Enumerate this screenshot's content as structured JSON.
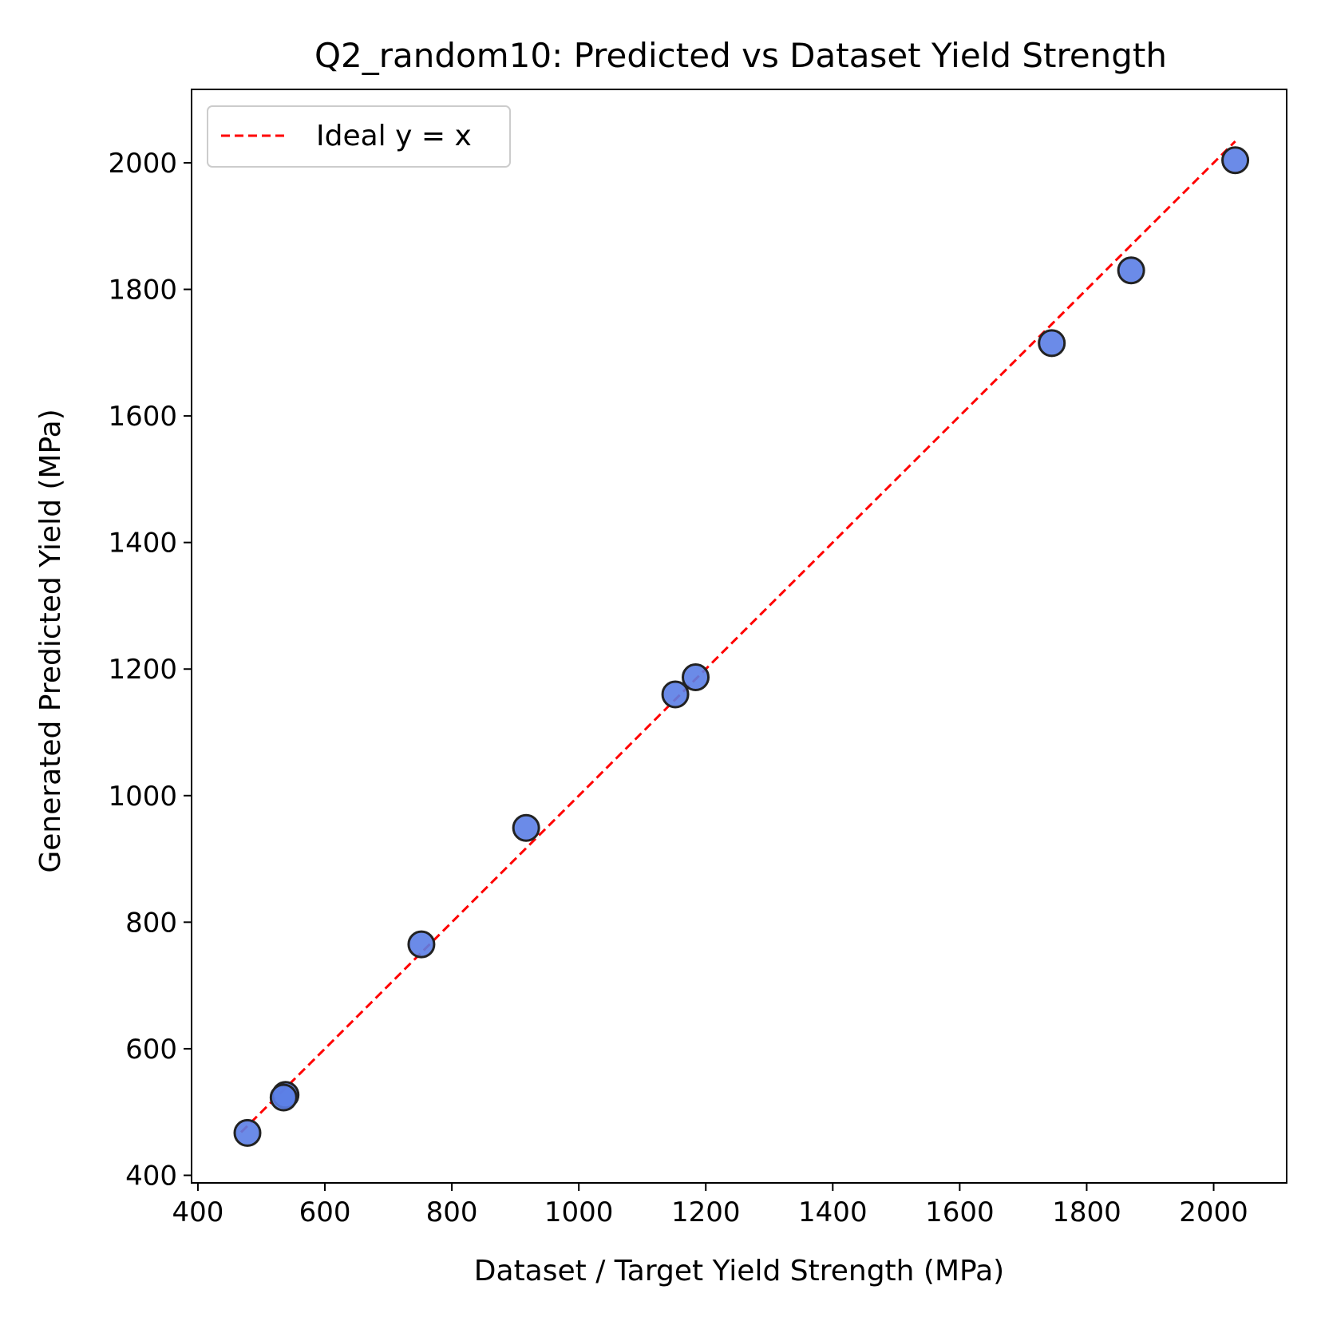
{
  "chart_data": {
    "type": "scatter",
    "title": "Q2_random10: Predicted vs Dataset Yield Strength",
    "xlabel": "Dataset / Target Yield Strength (MPa)",
    "ylabel": "Generated Predicted Yield (MPa)",
    "xlim": [
      390,
      2115
    ],
    "ylim": [
      388,
      2116
    ],
    "xticks": [
      400,
      600,
      800,
      1000,
      1200,
      1400,
      1600,
      1800,
      2000
    ],
    "yticks": [
      400,
      600,
      800,
      1000,
      1200,
      1400,
      1600,
      1800,
      2000
    ],
    "grid": false,
    "legend": {
      "position": "top-left",
      "entries": [
        "Ideal y = x"
      ]
    },
    "ideal_line": {
      "label": "Ideal y = x",
      "x": [
        468,
        2034
      ],
      "y": [
        468,
        2034
      ],
      "color": "#ff0000",
      "style": "dashed"
    },
    "series": [
      {
        "marker_color": "#5b7ee5",
        "edge_color": "#222222",
        "points": [
          {
            "x": 478,
            "y": 467
          },
          {
            "x": 538,
            "y": 527
          },
          {
            "x": 535,
            "y": 523
          },
          {
            "x": 752,
            "y": 765
          },
          {
            "x": 917,
            "y": 949
          },
          {
            "x": 1152,
            "y": 1160
          },
          {
            "x": 1184,
            "y": 1187
          },
          {
            "x": 1745,
            "y": 1715
          },
          {
            "x": 1870,
            "y": 1830
          },
          {
            "x": 2034,
            "y": 2004
          }
        ]
      }
    ]
  }
}
